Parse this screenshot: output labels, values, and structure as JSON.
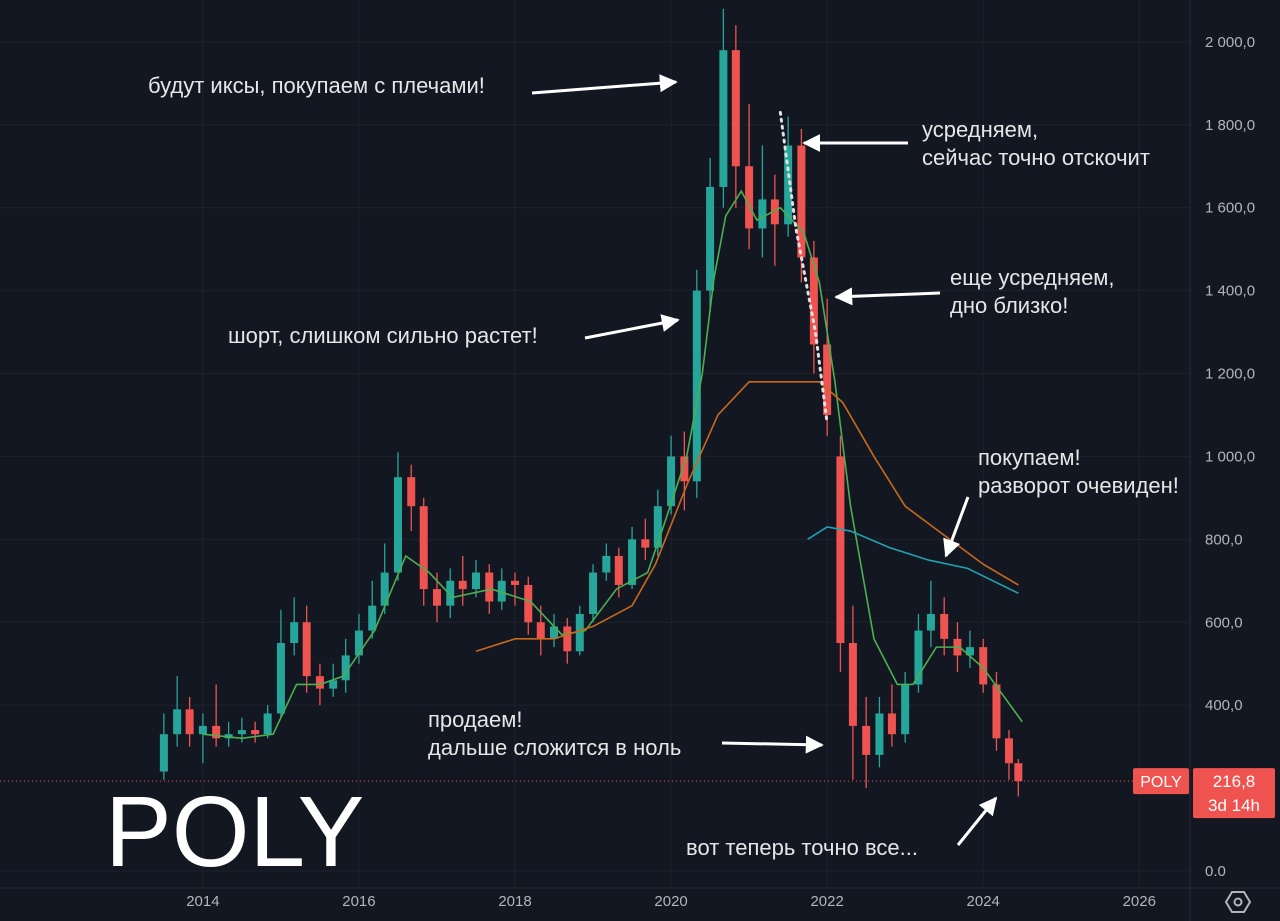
{
  "chart_data": {
    "type": "candlestick",
    "watermark": "POLY",
    "xlim": [
      2011.4,
      2026.65
    ],
    "ylim": [
      -41,
      2101
    ],
    "xticks": [
      2014,
      2016,
      2018,
      2020,
      2022,
      2024,
      2026
    ],
    "yticks": [
      {
        "value": 0,
        "label": "0.0"
      },
      {
        "value": 400,
        "label": "400,0"
      },
      {
        "value": 600,
        "label": "600,0"
      },
      {
        "value": 800,
        "label": "800,0"
      },
      {
        "value": 1000,
        "label": "1 000,0"
      },
      {
        "value": 1200,
        "label": "1 200,0"
      },
      {
        "value": 1400,
        "label": "1 400,0"
      },
      {
        "value": 1600,
        "label": "1 600,0"
      },
      {
        "value": 1800,
        "label": "1 800,0"
      },
      {
        "value": 2000,
        "label": "2 000,0"
      }
    ],
    "grid": true,
    "series": [
      {
        "name": "POLY",
        "up_color": "#26a69a",
        "down_color": "#ef5350",
        "x": [
          2013.5,
          2013.67,
          2013.83,
          2014.0,
          2014.17,
          2014.33,
          2014.5,
          2014.67,
          2014.83,
          2015.0,
          2015.17,
          2015.33,
          2015.5,
          2015.67,
          2015.83,
          2016.0,
          2016.17,
          2016.33,
          2016.5,
          2016.67,
          2016.83,
          2017.0,
          2017.17,
          2017.33,
          2017.5,
          2017.67,
          2017.83,
          2018.0,
          2018.17,
          2018.33,
          2018.5,
          2018.67,
          2018.83,
          2019.0,
          2019.17,
          2019.33,
          2019.5,
          2019.67,
          2019.83,
          2020.0,
          2020.17,
          2020.33,
          2020.5,
          2020.67,
          2020.83,
          2021.0,
          2021.17,
          2021.33,
          2021.5,
          2021.67,
          2021.83,
          2022.0,
          2022.17,
          2022.33,
          2022.5,
          2022.67,
          2022.83,
          2023.0,
          2023.17,
          2023.33,
          2023.5,
          2023.67,
          2023.83,
          2024.0,
          2024.17,
          2024.33,
          2024.45
        ],
        "open": [
          240,
          330,
          390,
          330,
          350,
          320,
          330,
          340,
          330,
          380,
          550,
          600,
          470,
          440,
          460,
          520,
          580,
          640,
          720,
          950,
          880,
          680,
          640,
          700,
          680,
          720,
          650,
          700,
          690,
          600,
          560,
          590,
          530,
          620,
          720,
          760,
          690,
          800,
          780,
          880,
          1000,
          940,
          1400,
          1650,
          1980,
          1700,
          1550,
          1620,
          1560,
          1750,
          1480,
          1270,
          1000,
          550,
          350,
          280,
          380,
          330,
          450,
          580,
          620,
          560,
          520,
          540,
          450,
          320,
          260
        ],
        "high": [
          380,
          470,
          420,
          380,
          450,
          360,
          370,
          360,
          400,
          630,
          660,
          640,
          500,
          500,
          560,
          620,
          700,
          790,
          1010,
          980,
          900,
          720,
          730,
          760,
          750,
          740,
          730,
          720,
          710,
          640,
          620,
          610,
          640,
          740,
          790,
          780,
          830,
          850,
          920,
          1050,
          1060,
          1450,
          1720,
          2080,
          2040,
          1850,
          1750,
          1680,
          1820,
          1790,
          1520,
          1380,
          1050,
          640,
          420,
          420,
          450,
          480,
          620,
          700,
          660,
          600,
          580,
          560,
          480,
          340,
          270
        ],
        "low": [
          220,
          300,
          300,
          260,
          300,
          300,
          310,
          310,
          320,
          370,
          520,
          430,
          400,
          420,
          430,
          500,
          560,
          620,
          700,
          820,
          640,
          600,
          610,
          640,
          660,
          620,
          630,
          640,
          570,
          520,
          540,
          500,
          520,
          600,
          700,
          660,
          680,
          750,
          760,
          860,
          870,
          900,
          1350,
          1600,
          1600,
          1500,
          1480,
          1460,
          1530,
          1420,
          1200,
          1050,
          480,
          220,
          200,
          250,
          300,
          310,
          430,
          540,
          520,
          480,
          490,
          430,
          290,
          220,
          180
        ],
        "close": [
          330,
          390,
          330,
          350,
          320,
          330,
          340,
          330,
          380,
          550,
          600,
          470,
          440,
          460,
          520,
          580,
          640,
          720,
          950,
          880,
          680,
          640,
          700,
          680,
          720,
          650,
          700,
          690,
          600,
          560,
          590,
          530,
          620,
          720,
          760,
          690,
          800,
          780,
          880,
          1000,
          940,
          1400,
          1650,
          1980,
          1700,
          1550,
          1620,
          1560,
          1750,
          1480,
          1270,
          1100,
          550,
          350,
          280,
          380,
          330,
          450,
          580,
          620,
          560,
          520,
          540,
          450,
          320,
          260,
          216.8
        ]
      }
    ],
    "lines": [
      {
        "color": "#4caf50",
        "x": [
          2014.0,
          2014.5,
          2014.9,
          2015.2,
          2015.5,
          2015.8,
          2016.2,
          2016.6,
          2016.9,
          2017.2,
          2017.7,
          2018.2,
          2018.6,
          2018.9,
          2019.3,
          2019.7,
          2019.9,
          2020.2,
          2020.4,
          2020.55,
          2020.7,
          2020.9,
          2021.1,
          2021.4,
          2021.7,
          2021.9,
          2022.1,
          2022.3,
          2022.6,
          2022.9,
          2023.1,
          2023.4,
          2023.7,
          2024.0,
          2024.5
        ],
        "values": [
          330,
          320,
          330,
          450,
          450,
          470,
          580,
          760,
          720,
          660,
          680,
          650,
          570,
          580,
          680,
          720,
          830,
          1000,
          1200,
          1430,
          1580,
          1640,
          1570,
          1600,
          1540,
          1420,
          1180,
          880,
          560,
          450,
          450,
          540,
          540,
          490,
          360
        ]
      },
      {
        "color": "#c8691c",
        "x": [
          2017.5,
          2018.0,
          2018.5,
          2019.0,
          2019.5,
          2019.8,
          2020.2,
          2020.6,
          2021.0,
          2021.5,
          2021.9,
          2022.2,
          2022.6,
          2023.0,
          2023.5,
          2024.0,
          2024.45
        ],
        "values": [
          530,
          560,
          560,
          590,
          640,
          740,
          930,
          1100,
          1180,
          1180,
          1180,
          1130,
          1000,
          880,
          810,
          740,
          690
        ]
      },
      {
        "color": "#1fa3b0",
        "x": [
          2021.75,
          2022.0,
          2022.3,
          2022.8,
          2023.3,
          2023.8,
          2024.45
        ],
        "values": [
          800,
          830,
          820,
          780,
          750,
          730,
          670
        ]
      }
    ],
    "trendline": {
      "color": "#e0e0e0",
      "x": [
        2021.4,
        2021.6,
        2021.85,
        2022.0
      ],
      "values": [
        1830,
        1550,
        1300,
        1080
      ]
    },
    "last_price": {
      "value": 216.8,
      "label": "216,8"
    },
    "countdown": "3d 14h",
    "annotations": [
      [
        "будут иксы, покупаем с плечами!"
      ],
      [
        "усредняем,",
        "сейчас точно отскочит"
      ],
      [
        "еще усредняем,",
        "дно близко!"
      ],
      [
        "шорт, слишком сильно растет!"
      ],
      [
        "покупаем!",
        "разворот очевиден!"
      ],
      [
        "продаем!",
        "дальше сложится в ноль"
      ],
      [
        "вот теперь точно все..."
      ]
    ]
  }
}
